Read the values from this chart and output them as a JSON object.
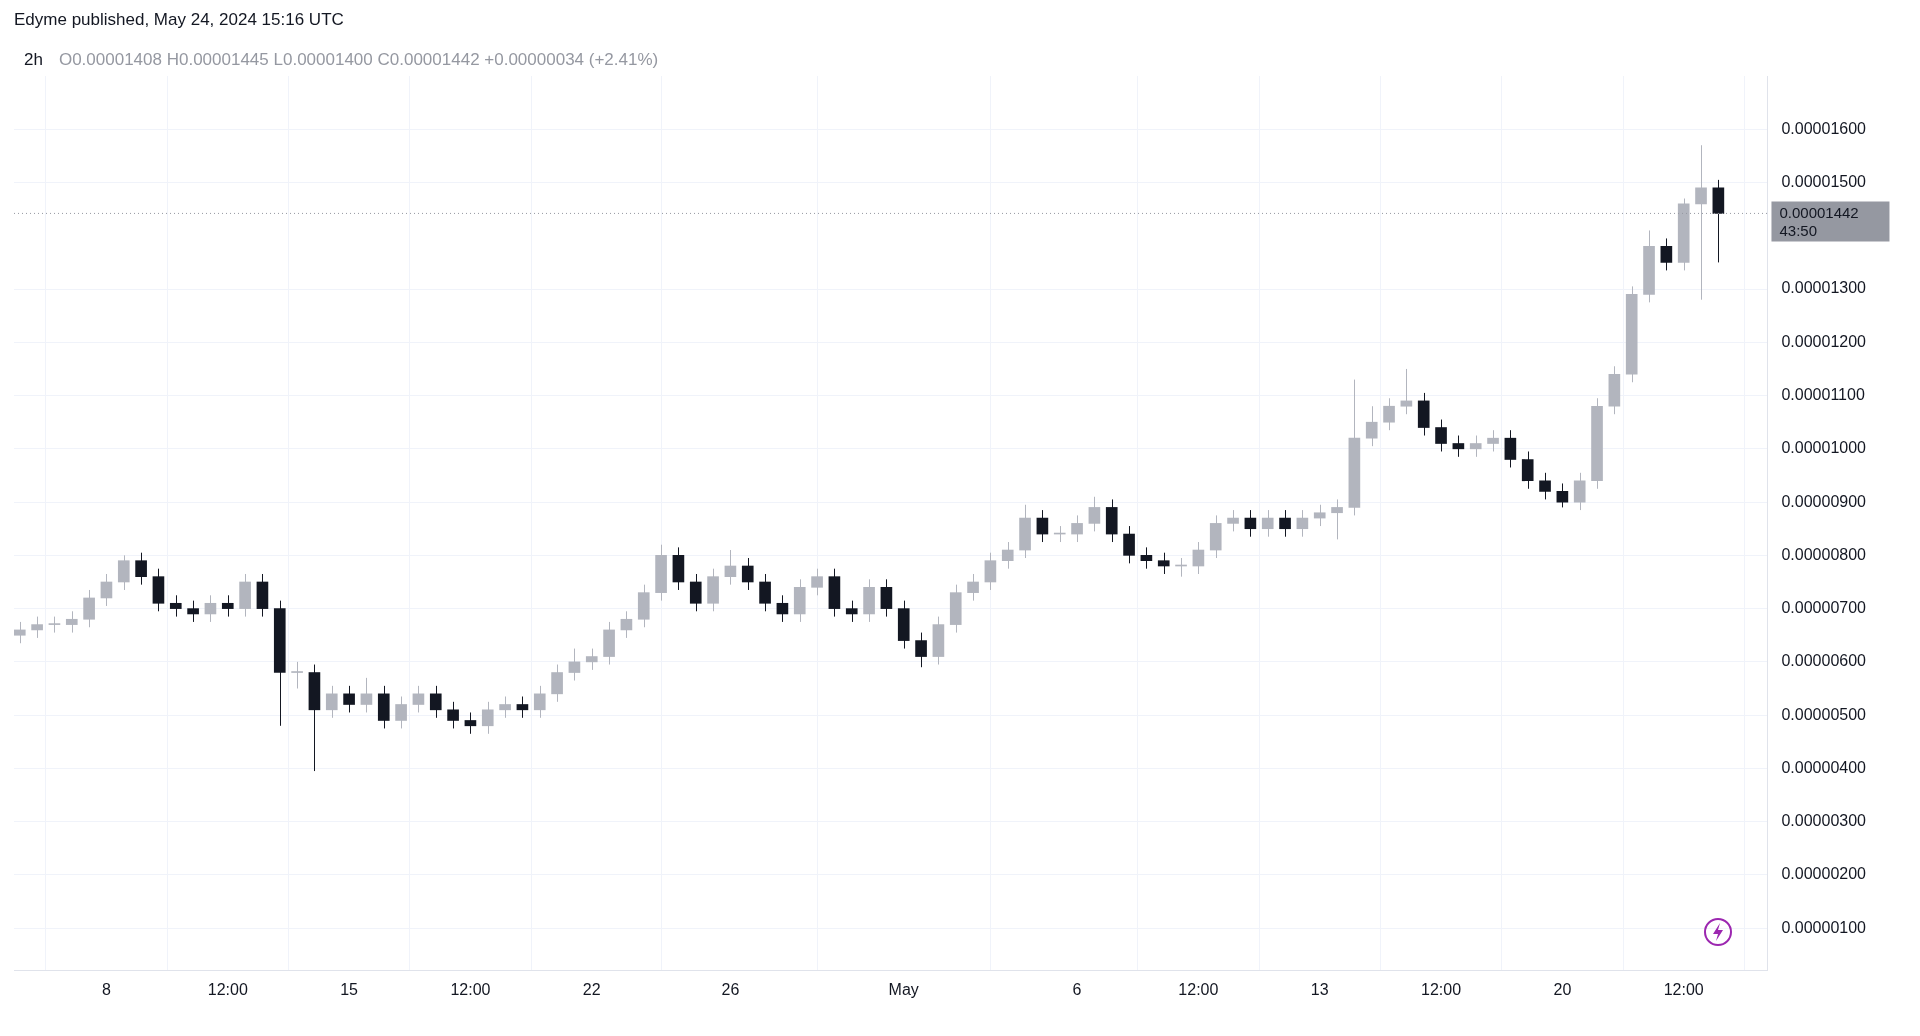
{
  "chart_data": {
    "type": "candlestick",
    "title": "2h",
    "subtitle": "O0.00001408 H0.00001445 L0.00001400 C0.00001442 +0.00000034 (+2.41%)",
    "annotations": [
      "Edyme published, May 24, 2024 15:16 UTC",
      "43:50"
    ],
    "x": [
      "2024-04-05T12:00",
      "2024-04-06T00:00",
      "2024-04-06T12:00",
      "2024-04-07T00:00",
      "2024-04-07T12:00",
      "2024-04-08T00:00",
      "2024-04-08T12:00",
      "2024-04-09T00:00",
      "2024-04-09T12:00",
      "2024-04-10T00:00",
      "2024-04-10T12:00",
      "2024-04-11T00:00",
      "2024-04-11T12:00",
      "2024-04-12T00:00",
      "2024-04-12T12:00",
      "2024-04-13T00:00",
      "2024-04-13T12:00",
      "2024-04-14T00:00",
      "2024-04-14T12:00",
      "2024-04-15T00:00",
      "2024-04-15T12:00",
      "2024-04-16T00:00",
      "2024-04-16T12:00",
      "2024-04-17T00:00",
      "2024-04-17T12:00",
      "2024-04-18T00:00",
      "2024-04-18T12:00",
      "2024-04-19T00:00",
      "2024-04-19T12:00",
      "2024-04-20T00:00",
      "2024-04-20T12:00",
      "2024-04-21T00:00",
      "2024-04-21T12:00",
      "2024-04-22T00:00",
      "2024-04-22T12:00",
      "2024-04-23T00:00",
      "2024-04-23T12:00",
      "2024-04-24T00:00",
      "2024-04-24T12:00",
      "2024-04-25T00:00",
      "2024-04-25T12:00",
      "2024-04-26T00:00",
      "2024-04-26T12:00",
      "2024-04-27T00:00",
      "2024-04-27T12:00",
      "2024-04-28T00:00",
      "2024-04-28T12:00",
      "2024-04-29T00:00",
      "2024-04-29T12:00",
      "2024-04-30T00:00",
      "2024-04-30T12:00",
      "2024-05-01T00:00",
      "2024-05-01T12:00",
      "2024-05-02T00:00",
      "2024-05-02T12:00",
      "2024-05-03T00:00",
      "2024-05-03T12:00",
      "2024-05-04T00:00",
      "2024-05-04T12:00",
      "2024-05-05T00:00",
      "2024-05-05T12:00",
      "2024-05-06T00:00",
      "2024-05-06T12:00",
      "2024-05-07T00:00",
      "2024-05-07T12:00",
      "2024-05-08T00:00",
      "2024-05-08T12:00",
      "2024-05-09T00:00",
      "2024-05-09T12:00",
      "2024-05-10T00:00",
      "2024-05-10T12:00",
      "2024-05-11T00:00",
      "2024-05-11T12:00",
      "2024-05-12T00:00",
      "2024-05-12T12:00",
      "2024-05-13T00:00",
      "2024-05-13T12:00",
      "2024-05-14T00:00",
      "2024-05-14T12:00",
      "2024-05-15T00:00",
      "2024-05-15T12:00",
      "2024-05-16T00:00",
      "2024-05-16T12:00",
      "2024-05-17T00:00",
      "2024-05-17T12:00",
      "2024-05-18T00:00",
      "2024-05-18T12:00",
      "2024-05-19T00:00",
      "2024-05-19T12:00",
      "2024-05-20T00:00",
      "2024-05-20T12:00",
      "2024-05-21T00:00",
      "2024-05-21T12:00",
      "2024-05-22T00:00",
      "2024-05-22T12:00",
      "2024-05-23T00:00",
      "2024-05-23T12:00",
      "2024-05-24T00:00",
      "2024-05-24T12:00"
    ],
    "ohlc": [
      [
        6.5e-06,
        6.75e-06,
        6.35e-06,
        6.6e-06
      ],
      [
        6.6e-06,
        6.85e-06,
        6.45e-06,
        6.7e-06
      ],
      [
        6.7e-06,
        6.85e-06,
        6.55e-06,
        6.7e-06
      ],
      [
        6.7e-06,
        6.95e-06,
        6.55e-06,
        6.8e-06
      ],
      [
        6.8e-06,
        7.35e-06,
        6.65e-06,
        7.2e-06
      ],
      [
        7.2e-06,
        7.65e-06,
        7.05e-06,
        7.5e-06
      ],
      [
        7.5e-06,
        8e-06,
        7.35e-06,
        7.9e-06
      ],
      [
        7.9e-06,
        8.05e-06,
        7.45e-06,
        7.6e-06
      ],
      [
        7.6e-06,
        7.75e-06,
        6.95e-06,
        7.1e-06
      ],
      [
        7.1e-06,
        7.25e-06,
        6.85e-06,
        7e-06
      ],
      [
        7e-06,
        7.15e-06,
        6.75e-06,
        6.9e-06
      ],
      [
        6.9e-06,
        7.25e-06,
        6.75e-06,
        7.1e-06
      ],
      [
        7.1e-06,
        7.25e-06,
        6.85e-06,
        7e-06
      ],
      [
        7e-06,
        7.65e-06,
        6.85e-06,
        7.5e-06
      ],
      [
        7.5e-06,
        7.65e-06,
        6.85e-06,
        7e-06
      ],
      [
        7e-06,
        7.15e-06,
        4.8e-06,
        5.8e-06
      ],
      [
        5.8e-06,
        6e-06,
        5.5e-06,
        5.8e-06
      ],
      [
        5.8e-06,
        5.95e-06,
        3.95e-06,
        5.1e-06
      ],
      [
        5.1e-06,
        5.55e-06,
        4.95e-06,
        5.4e-06
      ],
      [
        5.4e-06,
        5.55e-06,
        5.05e-06,
        5.2e-06
      ],
      [
        5.2e-06,
        5.7e-06,
        5.05e-06,
        5.4e-06
      ],
      [
        5.4e-06,
        5.55e-06,
        4.75e-06,
        4.9e-06
      ],
      [
        4.9e-06,
        5.35e-06,
        4.75e-06,
        5.2e-06
      ],
      [
        5.2e-06,
        5.55e-06,
        5.05e-06,
        5.4e-06
      ],
      [
        5.4e-06,
        5.55e-06,
        4.95e-06,
        5.1e-06
      ],
      [
        5.1e-06,
        5.25e-06,
        4.75e-06,
        4.9e-06
      ],
      [
        4.9e-06,
        5.05e-06,
        4.65e-06,
        4.8e-06
      ],
      [
        4.8e-06,
        5.25e-06,
        4.65e-06,
        5.1e-06
      ],
      [
        5.1e-06,
        5.35e-06,
        4.95e-06,
        5.2e-06
      ],
      [
        5.2e-06,
        5.35e-06,
        4.95e-06,
        5.1e-06
      ],
      [
        5.1e-06,
        5.55e-06,
        4.95e-06,
        5.4e-06
      ],
      [
        5.4e-06,
        5.95e-06,
        5.25e-06,
        5.8e-06
      ],
      [
        5.8e-06,
        6.25e-06,
        5.65e-06,
        6e-06
      ],
      [
        6e-06,
        6.25e-06,
        5.85e-06,
        6.1e-06
      ],
      [
        6.1e-06,
        6.75e-06,
        5.95e-06,
        6.6e-06
      ],
      [
        6.6e-06,
        6.95e-06,
        6.45e-06,
        6.8e-06
      ],
      [
        6.8e-06,
        7.45e-06,
        6.65e-06,
        7.3e-06
      ],
      [
        7.3e-06,
        8.2e-06,
        7.15e-06,
        8e-06
      ],
      [
        8e-06,
        8.15e-06,
        7.35e-06,
        7.5e-06
      ],
      [
        7.5e-06,
        7.65e-06,
        6.95e-06,
        7.1e-06
      ],
      [
        7.1e-06,
        7.75e-06,
        6.95e-06,
        7.6e-06
      ],
      [
        7.6e-06,
        8.1e-06,
        7.45e-06,
        7.8e-06
      ],
      [
        7.8e-06,
        7.95e-06,
        7.35e-06,
        7.5e-06
      ],
      [
        7.5e-06,
        7.65e-06,
        6.95e-06,
        7.1e-06
      ],
      [
        7.1e-06,
        7.25e-06,
        6.75e-06,
        6.9e-06
      ],
      [
        6.9e-06,
        7.55e-06,
        6.75e-06,
        7.4e-06
      ],
      [
        7.4e-06,
        7.75e-06,
        7.25e-06,
        7.6e-06
      ],
      [
        7.6e-06,
        7.75e-06,
        6.85e-06,
        7e-06
      ],
      [
        7e-06,
        7.15e-06,
        6.75e-06,
        6.9e-06
      ],
      [
        6.9e-06,
        7.55e-06,
        6.75e-06,
        7.4e-06
      ],
      [
        7.4e-06,
        7.55e-06,
        6.85e-06,
        7e-06
      ],
      [
        7e-06,
        7.15e-06,
        6.25e-06,
        6.4e-06
      ],
      [
        6.4e-06,
        6.55e-06,
        5.9e-06,
        6.1e-06
      ],
      [
        6.1e-06,
        6.85e-06,
        5.95e-06,
        6.7e-06
      ],
      [
        6.7e-06,
        7.45e-06,
        6.55e-06,
        7.3e-06
      ],
      [
        7.3e-06,
        7.65e-06,
        7.15e-06,
        7.5e-06
      ],
      [
        7.5e-06,
        8.05e-06,
        7.35e-06,
        7.9e-06
      ],
      [
        7.9e-06,
        8.25e-06,
        7.75e-06,
        8.1e-06
      ],
      [
        8.1e-06,
        8.95e-06,
        7.95e-06,
        8.7e-06
      ],
      [
        8.7e-06,
        8.85e-06,
        8.25e-06,
        8.4e-06
      ],
      [
        8.4e-06,
        8.55e-06,
        8.25e-06,
        8.4e-06
      ],
      [
        8.4e-06,
        8.75e-06,
        8.25e-06,
        8.6e-06
      ],
      [
        8.6e-06,
        9.1e-06,
        8.45e-06,
        8.9e-06
      ],
      [
        8.9e-06,
        9.05e-06,
        8.25e-06,
        8.4e-06
      ],
      [
        8.4e-06,
        8.55e-06,
        7.85e-06,
        8e-06
      ],
      [
        8e-06,
        8.15e-06,
        7.75e-06,
        7.9e-06
      ],
      [
        7.9e-06,
        8.05e-06,
        7.65e-06,
        7.8e-06
      ],
      [
        7.8e-06,
        7.95e-06,
        7.6e-06,
        7.8e-06
      ],
      [
        7.8e-06,
        8.25e-06,
        7.65e-06,
        8.1e-06
      ],
      [
        8.1e-06,
        8.75e-06,
        7.95e-06,
        8.6e-06
      ],
      [
        8.6e-06,
        8.85e-06,
        8.45e-06,
        8.7e-06
      ],
      [
        8.7e-06,
        8.85e-06,
        8.35e-06,
        8.5e-06
      ],
      [
        8.5e-06,
        8.85e-06,
        8.35e-06,
        8.7e-06
      ],
      [
        8.7e-06,
        8.85e-06,
        8.35e-06,
        8.5e-06
      ],
      [
        8.5e-06,
        8.85e-06,
        8.35e-06,
        8.7e-06
      ],
      [
        8.7e-06,
        8.95e-06,
        8.55e-06,
        8.8e-06
      ],
      [
        8.8e-06,
        9.05e-06,
        8.3e-06,
        8.9e-06
      ],
      [
        8.9e-06,
        1.13e-05,
        8.75e-06,
        1.02e-05
      ],
      [
        1.02e-05,
        1.08e-05,
        1.005e-05,
        1.05e-05
      ],
      [
        1.05e-05,
        1.095e-05,
        1.035e-05,
        1.08e-05
      ],
      [
        1.08e-05,
        1.15e-05,
        1.065e-05,
        1.09e-05
      ],
      [
        1.09e-05,
        1.105e-05,
        1.025e-05,
        1.04e-05
      ],
      [
        1.04e-05,
        1.055e-05,
        9.95e-06,
        1.01e-05
      ],
      [
        1.01e-05,
        1.025e-05,
        9.85e-06,
        1e-05
      ],
      [
        1e-05,
        1.025e-05,
        9.85e-06,
        1.01e-05
      ],
      [
        1.01e-05,
        1.035e-05,
        9.95e-06,
        1.02e-05
      ],
      [
        1.02e-05,
        1.035e-05,
        9.65e-06,
        9.8e-06
      ],
      [
        9.8e-06,
        9.95e-06,
        9.25e-06,
        9.4e-06
      ],
      [
        9.4e-06,
        9.55e-06,
        9.05e-06,
        9.2e-06
      ],
      [
        9.2e-06,
        9.35e-06,
        8.9e-06,
        9e-06
      ],
      [
        9e-06,
        9.55e-06,
        8.85e-06,
        9.4e-06
      ],
      [
        9.4e-06,
        1.095e-05,
        9.25e-06,
        1.08e-05
      ],
      [
        1.08e-05,
        1.155e-05,
        1.065e-05,
        1.14e-05
      ],
      [
        1.14e-05,
        1.305e-05,
        1.125e-05,
        1.29e-05
      ],
      [
        1.29e-05,
        1.41e-05,
        1.275e-05,
        1.38e-05
      ],
      [
        1.38e-05,
        1.395e-05,
        1.335e-05,
        1.35e-05
      ],
      [
        1.35e-05,
        1.47e-05,
        1.335e-05,
        1.46e-05
      ],
      [
        1.46e-05,
        1.57e-05,
        1.28e-05,
        1.49e-05
      ],
      [
        1.49e-05,
        1.505e-05,
        1.35e-05,
        1.442e-05
      ]
    ],
    "colors": [
      "#b2b5be",
      "#b2b5be",
      "#b2b5be",
      "#b2b5be",
      "#b2b5be",
      "#b2b5be",
      "#b2b5be",
      "#131722",
      "#131722",
      "#131722",
      "#131722",
      "#b2b5be",
      "#131722",
      "#b2b5be",
      "#131722",
      "#131722",
      "#b2b5be",
      "#131722",
      "#b2b5be",
      "#131722",
      "#b2b5be",
      "#131722",
      "#b2b5be",
      "#b2b5be",
      "#131722",
      "#131722",
      "#131722",
      "#b2b5be",
      "#b2b5be",
      "#131722",
      "#b2b5be",
      "#b2b5be",
      "#b2b5be",
      "#b2b5be",
      "#b2b5be",
      "#b2b5be",
      "#b2b5be",
      "#b2b5be",
      "#131722",
      "#131722",
      "#b2b5be",
      "#b2b5be",
      "#131722",
      "#131722",
      "#131722",
      "#b2b5be",
      "#b2b5be",
      "#131722",
      "#131722",
      "#b2b5be",
      "#131722",
      "#131722",
      "#131722",
      "#b2b5be",
      "#b2b5be",
      "#b2b5be",
      "#b2b5be",
      "#b2b5be",
      "#b2b5be",
      "#131722",
      "#b2b5be",
      "#b2b5be",
      "#b2b5be",
      "#131722",
      "#131722",
      "#131722",
      "#131722",
      "#b2b5be",
      "#b2b5be",
      "#b2b5be",
      "#b2b5be",
      "#131722",
      "#b2b5be",
      "#131722",
      "#b2b5be",
      "#b2b5be",
      "#b2b5be",
      "#b2b5be",
      "#b2b5be",
      "#b2b5be",
      "#b2b5be",
      "#131722",
      "#131722",
      "#131722",
      "#b2b5be",
      "#b2b5be",
      "#131722",
      "#131722",
      "#131722",
      "#131722",
      "#b2b5be",
      "#b2b5be",
      "#b2b5be",
      "#b2b5be",
      "#b2b5be",
      "#131722",
      "#b2b5be",
      "#b2b5be",
      "#131722"
    ],
    "xlim": [
      "2024-04-05T08:00",
      "2024-05-25T22:00"
    ],
    "xticks": [
      {
        "value": "2024-04-08",
        "label": "8"
      },
      {
        "value": "2024-04-11T12:00",
        "label": "12:00"
      },
      {
        "value": "2024-04-15",
        "label": "15"
      },
      {
        "value": "2024-04-18T12:00",
        "label": "12:00"
      },
      {
        "value": "2024-04-22",
        "label": "22"
      },
      {
        "value": "2024-04-26",
        "label": "26"
      },
      {
        "value": "2024-05-01",
        "label": "May"
      },
      {
        "value": "2024-05-06",
        "label": "6"
      },
      {
        "value": "2024-05-09T12:00",
        "label": "12:00"
      },
      {
        "value": "2024-05-13",
        "label": "13"
      },
      {
        "value": "2024-05-16T12:00",
        "label": "12:00"
      },
      {
        "value": "2024-05-20",
        "label": "20"
      },
      {
        "value": "2024-05-23T12:00",
        "label": "12:00"
      }
    ],
    "ylim": [
      2e-07,
      1.7e-05
    ],
    "yticks": [
      {
        "value": 1e-06,
        "label": "0.00000100"
      },
      {
        "value": 2e-06,
        "label": "0.00000200"
      },
      {
        "value": 3e-06,
        "label": "0.00000300"
      },
      {
        "value": 4e-06,
        "label": "0.00000400"
      },
      {
        "value": 5e-06,
        "label": "0.00000500"
      },
      {
        "value": 6e-06,
        "label": "0.00000600"
      },
      {
        "value": 7e-06,
        "label": "0.00000700"
      },
      {
        "value": 8e-06,
        "label": "0.00000800"
      },
      {
        "value": 9e-06,
        "label": "0.00000900"
      },
      {
        "value": 1e-05,
        "label": "0.00001000"
      },
      {
        "value": 1.1e-05,
        "label": "0.00001100"
      },
      {
        "value": 1.2e-05,
        "label": "0.00001200"
      },
      {
        "value": 1.3e-05,
        "label": "0.00001300"
      },
      {
        "value": 1.5e-05,
        "label": "0.00001500"
      },
      {
        "value": 1.6e-05,
        "label": "0.00001600"
      }
    ],
    "ref_lines": [
      {
        "axis": "y",
        "value": 1.442e-05,
        "label": "0.00001442",
        "color": "#9598a1",
        "line_style": "dotted"
      }
    ],
    "grid": true
  }
}
